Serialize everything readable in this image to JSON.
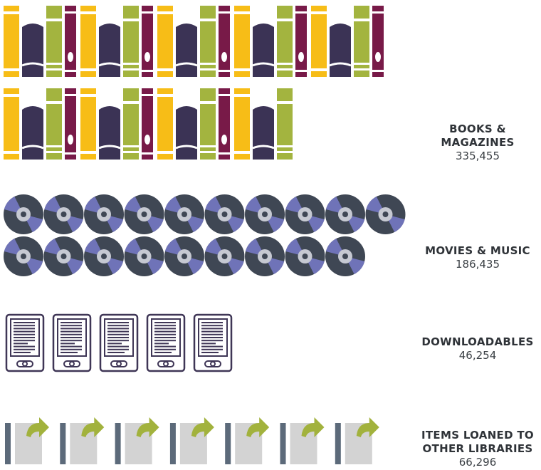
{
  "chart_data": {
    "type": "pictogram",
    "title": "",
    "categories": [
      {
        "key": "books",
        "label": "BOOKS & MAGAZINES",
        "lines": [
          "BOOKS &",
          "MAGAZINES"
        ],
        "value": 335455,
        "value_text": "335,455",
        "icon": "book-icon",
        "icon_count": 35
      },
      {
        "key": "media",
        "label": "MOVIES & MUSIC",
        "lines": [
          "MOVIES & MUSIC"
        ],
        "value": 186435,
        "value_text": "186,435",
        "icon": "disc-icon",
        "icon_count": 19
      },
      {
        "key": "downloads",
        "label": "DOWNLOADABLES",
        "lines": [
          "DOWNLOADABLES"
        ],
        "value": 46254,
        "value_text": "46,254",
        "icon": "ereader-icon",
        "icon_count": 5
      },
      {
        "key": "loans",
        "label": "ITEMS LOANED TO OTHER LIBRARIES",
        "lines": [
          "ITEMS LOANED TO",
          "OTHER LIBRARIES"
        ],
        "value": 66296,
        "value_text": "66,296",
        "icon": "loan-icon",
        "icon_count": 7
      }
    ],
    "colors": {
      "book_yellow": "#f7bd17",
      "book_navy": "#3b3355",
      "book_green": "#a3b43f",
      "book_plum": "#781a48",
      "disc_dark": "#3f4754",
      "disc_blue": "#6f73b8",
      "disc_light": "#c6c9d2",
      "ereader": "#3f3656",
      "loan_bar": "#5c6a7a",
      "loan_page": "#d3d3d3",
      "loan_arrow": "#a2b23d"
    }
  }
}
